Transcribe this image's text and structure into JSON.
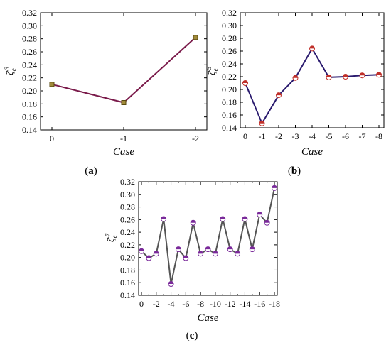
{
  "chart_data": [
    {
      "panel": "(a)",
      "panel_letter": "a",
      "type": "line",
      "xlabel": "Case",
      "ylabel_base": "ζ",
      "ylabel_sub": "e",
      "ylabel_sup": "-3",
      "categories": [
        "0",
        "-1",
        "-2"
      ],
      "values": [
        0.21,
        0.182,
        0.282
      ],
      "ylim": [
        0.14,
        0.32
      ],
      "yticks": [
        "0.14",
        "0.16",
        "0.18",
        "0.20",
        "0.22",
        "0.24",
        "0.26",
        "0.28",
        "0.30",
        "0.32"
      ],
      "line_color": "#7a1a4a",
      "marker": "square",
      "marker_color": "#a08a3a",
      "grid": false
    },
    {
      "panel": "(b)",
      "panel_letter": "b",
      "type": "line",
      "xlabel": "Case",
      "ylabel_base": "ζ",
      "ylabel_sub": "e",
      "ylabel_sup": "-5",
      "categories": [
        "0",
        "-1",
        "-2",
        "-3",
        "-4",
        "-5",
        "-6",
        "-7",
        "-8"
      ],
      "values": [
        0.21,
        0.147,
        0.191,
        0.218,
        0.264,
        0.219,
        0.22,
        0.222,
        0.223
      ],
      "ylim": [
        0.14,
        0.32
      ],
      "yticks": [
        "0.14",
        "0.16",
        "0.18",
        "0.20",
        "0.22",
        "0.24",
        "0.26",
        "0.28",
        "0.30",
        "0.32"
      ],
      "line_color": "#2a1a6e",
      "marker": "circle-half",
      "marker_color": "#c0302a",
      "grid": false
    },
    {
      "panel": "(c)",
      "panel_letter": "c",
      "type": "line",
      "xlabel": "Case",
      "ylabel_base": "ζ",
      "ylabel_sub": "e",
      "ylabel_sup": "-7",
      "categories": [
        "0",
        "-1",
        "-2",
        "-3",
        "-4",
        "-5",
        "-6",
        "-7",
        "-8",
        "-9",
        "-10",
        "-11",
        "-12",
        "-13",
        "-14",
        "-15",
        "-16",
        "-17",
        "-18"
      ],
      "xtick_labels": [
        "0",
        "-2",
        "-4",
        "-6",
        "-8",
        "-10",
        "-12",
        "-14",
        "-16",
        "-18"
      ],
      "values": [
        0.21,
        0.199,
        0.206,
        0.261,
        0.158,
        0.213,
        0.199,
        0.255,
        0.206,
        0.213,
        0.206,
        0.261,
        0.213,
        0.206,
        0.261,
        0.213,
        0.268,
        0.255,
        0.31
      ],
      "ylim": [
        0.14,
        0.32
      ],
      "yticks": [
        "0.14",
        "0.16",
        "0.18",
        "0.20",
        "0.22",
        "0.24",
        "0.26",
        "0.28",
        "0.30",
        "0.32"
      ],
      "line_color": "#555555",
      "marker": "circle-half",
      "marker_color": "#7a2a9a",
      "grid": false
    }
  ]
}
